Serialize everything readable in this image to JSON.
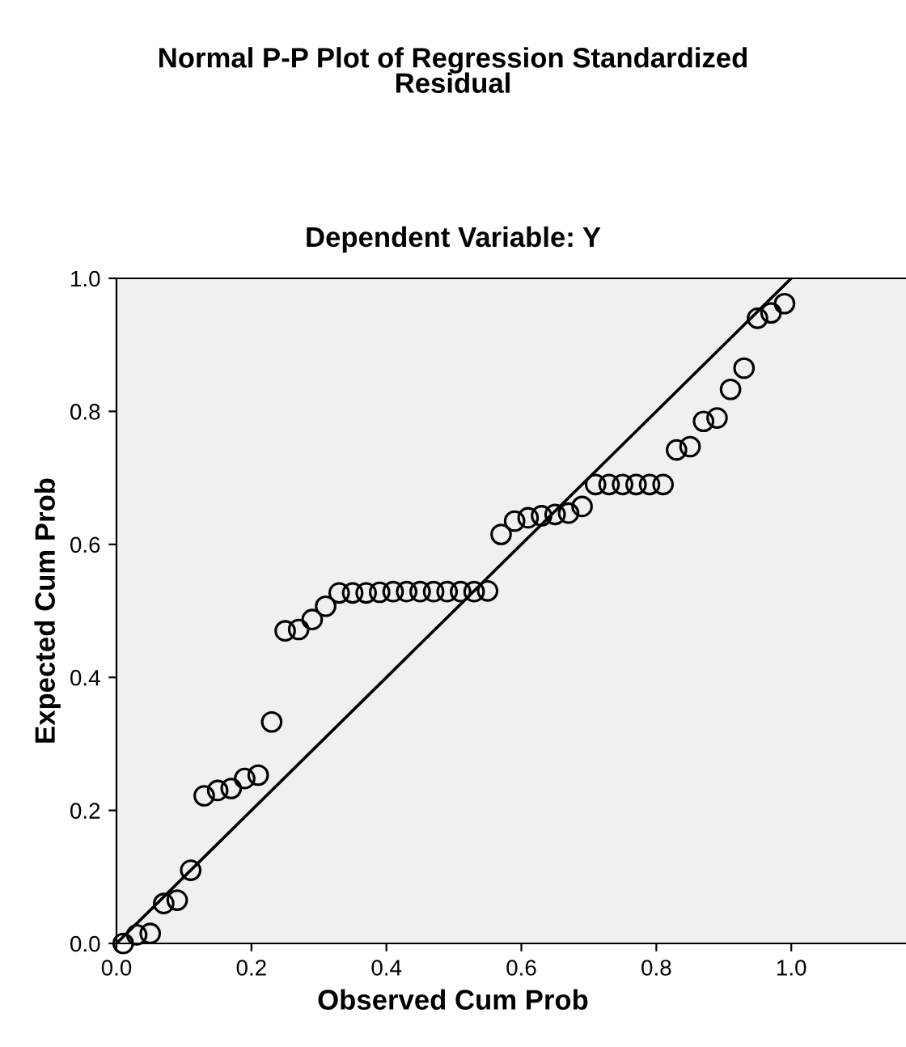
{
  "chart_data": {
    "type": "scatter",
    "title": "Normal P-P Plot of Regression Standardized\nResidual",
    "subtitle": "Dependent Variable: Y",
    "xlabel": "Observed Cum Prob",
    "ylabel": "Expected Cum Prob",
    "xlim": [
      0,
      1.17
    ],
    "ylim": [
      0,
      1.0
    ],
    "xticks": [
      {
        "value": 0,
        "label": "0.0"
      },
      0.2,
      0.4,
      0.6,
      0.8,
      {
        "value": 1.0,
        "label": "1.0"
      }
    ],
    "yticks": [
      {
        "value": 0,
        "label": "0.0"
      },
      0.2,
      0.4,
      0.6,
      0.8,
      {
        "value": 1.0,
        "label": "1.0"
      }
    ],
    "grid": false,
    "legend": false,
    "marker": "circle",
    "series": [
      {
        "color": "#000000",
        "x": [
          0.01,
          0.03,
          0.05,
          0.07,
          0.09,
          0.11,
          0.13,
          0.15,
          0.17,
          0.19,
          0.21,
          0.23,
          0.25,
          0.27,
          0.29,
          0.31,
          0.33,
          0.35,
          0.37,
          0.39,
          0.41,
          0.43,
          0.45,
          0.47,
          0.49,
          0.51,
          0.53,
          0.55,
          0.57,
          0.59,
          0.61,
          0.63,
          0.65,
          0.67,
          0.69,
          0.71,
          0.73,
          0.75,
          0.77,
          0.79,
          0.81,
          0.83,
          0.85,
          0.87,
          0.89,
          0.91,
          0.93,
          0.95,
          0.97,
          0.99
        ],
        "values": [
          0.0,
          0.013,
          0.015,
          0.06,
          0.065,
          0.11,
          0.222,
          0.23,
          0.233,
          0.248,
          0.253,
          0.333,
          0.47,
          0.472,
          0.487,
          0.507,
          0.527,
          0.527,
          0.527,
          0.528,
          0.529,
          0.529,
          0.529,
          0.529,
          0.529,
          0.529,
          0.529,
          0.53,
          0.615,
          0.635,
          0.64,
          0.643,
          0.645,
          0.647,
          0.657,
          0.69,
          0.69,
          0.69,
          0.69,
          0.69,
          0.69,
          0.742,
          0.747,
          0.785,
          0.79,
          0.833,
          0.865,
          0.94,
          0.948,
          0.962
        ]
      },
      {
        "type": "line",
        "marker": "none",
        "color": "#000000",
        "x": [
          0,
          1
        ],
        "values": [
          0,
          1
        ]
      }
    ]
  }
}
